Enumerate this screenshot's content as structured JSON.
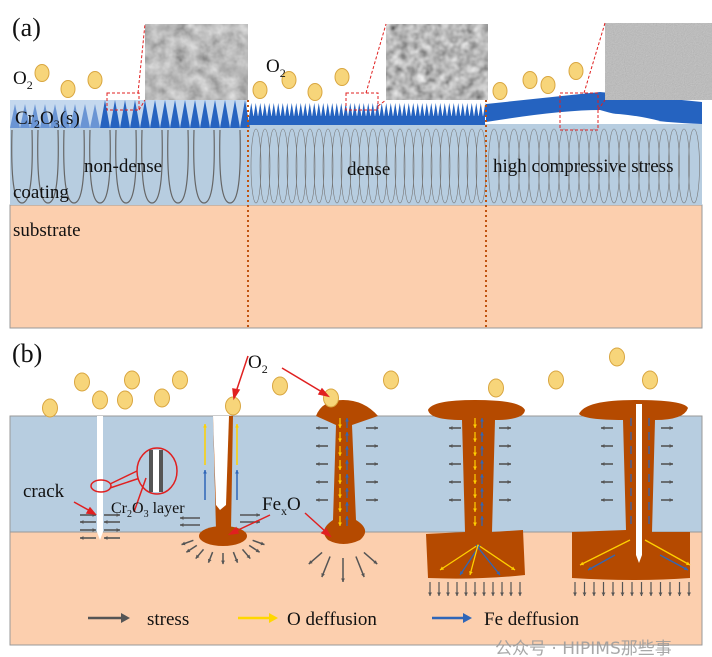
{
  "panel_a": {
    "label": "(a)",
    "o2_label_1": "O",
    "o2_label_2": "O",
    "o2_sub": "2",
    "oxide_label": {
      "main": "Cr",
      "sub1": "2",
      "mid": "O",
      "sub2": "3",
      "tail": "(s)"
    },
    "coating_label": "coating",
    "substrate_label": "substrate",
    "regions": [
      "non-dense",
      "dense",
      "high compressive stress"
    ]
  },
  "panel_b": {
    "label": "(b)",
    "o2_label": "O",
    "o2_sub": "2",
    "crack_label": "crack",
    "oxide_layer_label": {
      "main": "Cr",
      "sub1": "2",
      "mid": "O",
      "sub2": "3",
      "tail": " layer"
    },
    "fexo_label": {
      "main": "Fe",
      "sub": "x",
      "tail": "O"
    },
    "legend": [
      {
        "label": "stress",
        "color": "#555555"
      },
      {
        "label": "O deffusion",
        "color": "#ffd700"
      },
      {
        "label": "Fe deffusion",
        "color": "#2f66b8"
      }
    ]
  },
  "colors": {
    "coating": "#b7cde0",
    "substrate": "#fccfae",
    "oxide": "#2563c0",
    "feo": "#b54a00",
    "o2": "#f7d57a",
    "callout": "#e02020"
  },
  "watermark": "公众号 · HIPIMS那些事"
}
